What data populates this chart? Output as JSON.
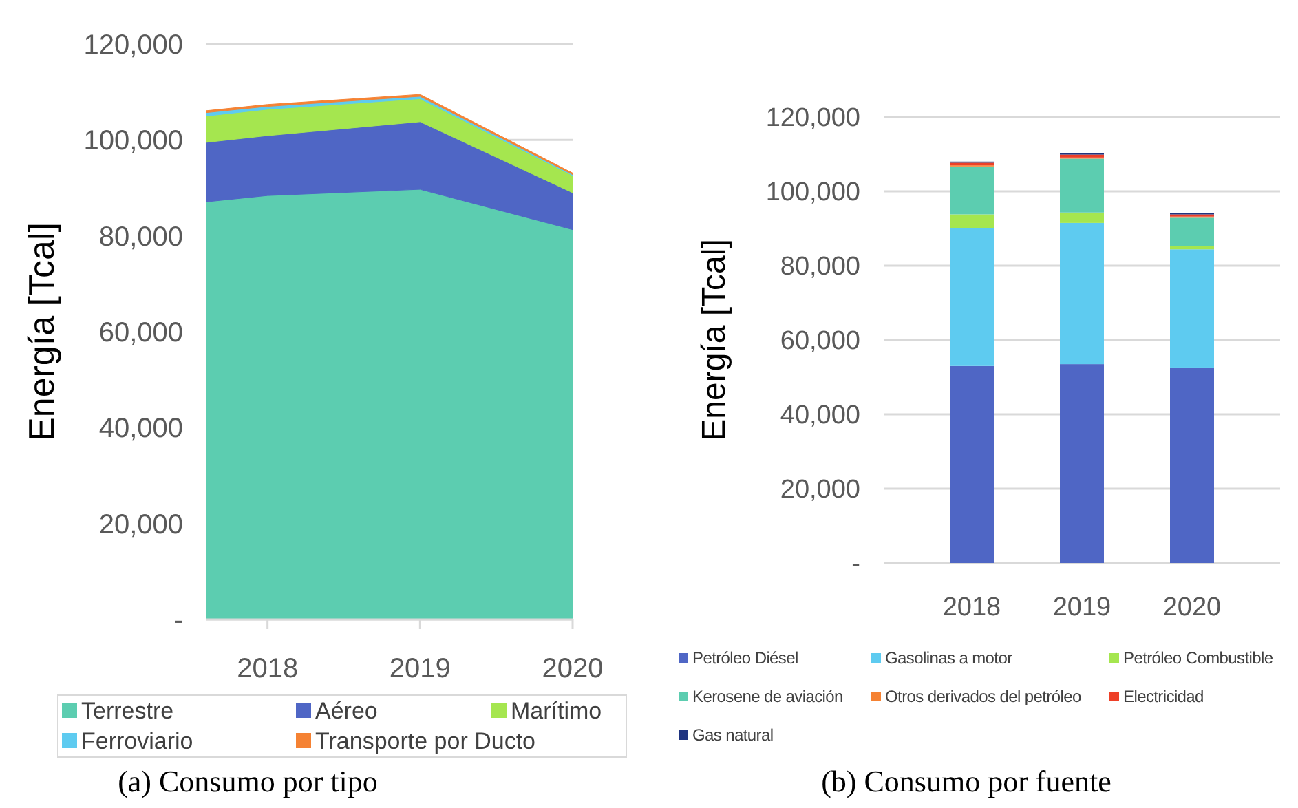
{
  "chart_data": [
    {
      "type": "area",
      "stacked": true,
      "x": [
        2017.6,
        2018,
        2019,
        2020
      ],
      "xlim": [
        2017.6,
        2020
      ],
      "xticks": [
        2018,
        2019,
        2020
      ],
      "ylabel": "Energía [Tcal]",
      "ylim": [
        0,
        120000
      ],
      "yticks": [
        {
          "value": 0,
          "label": "-"
        },
        {
          "value": 20000,
          "label": "20,000"
        },
        {
          "value": 40000,
          "label": "40,000"
        },
        {
          "value": 60000,
          "label": "60,000"
        },
        {
          "value": 80000,
          "label": "80,000"
        },
        {
          "value": 100000,
          "label": "100,000"
        },
        {
          "value": 120000,
          "label": "120,000"
        }
      ],
      "grid": "y",
      "legend": "bottom",
      "annotations": [
        "(a) Consumo por tipo"
      ],
      "series": [
        {
          "name": "Terrestre",
          "color": "#5ccdb0",
          "values": [
            87100,
            88400,
            89700,
            81300
          ]
        },
        {
          "name": "Aéreo",
          "color": "#4f66c5",
          "values": [
            12400,
            12500,
            14100,
            7700
          ]
        },
        {
          "name": "Marítimo",
          "color": "#a5e64f",
          "values": [
            5500,
            5500,
            4800,
            3600
          ]
        },
        {
          "name": "Ferroviario",
          "color": "#5ecbf0",
          "values": [
            700,
            600,
            500,
            200
          ]
        },
        {
          "name": "Transporte por Ducto",
          "color": "#f58233",
          "values": [
            400,
            400,
            400,
            300
          ]
        }
      ]
    },
    {
      "type": "bar",
      "stacked": true,
      "categories": [
        "2018",
        "2019",
        "2020"
      ],
      "ylabel": "Energía [Tcal]",
      "ylim": [
        0,
        120000
      ],
      "yticks": [
        {
          "value": 0,
          "label": "-"
        },
        {
          "value": 20000,
          "label": "20,000"
        },
        {
          "value": 40000,
          "label": "40,000"
        },
        {
          "value": 60000,
          "label": "60,000"
        },
        {
          "value": 80000,
          "label": "80,000"
        },
        {
          "value": 100000,
          "label": "100,000"
        },
        {
          "value": 120000,
          "label": "120,000"
        }
      ],
      "grid": "y",
      "legend": "bottom",
      "annotations": [
        "(b) Consumo por fuente"
      ],
      "series": [
        {
          "name": "Petróleo Diésel",
          "color": "#4f66c5",
          "values": [
            53000,
            53500,
            52600
          ]
        },
        {
          "name": "Gasolinas a motor",
          "color": "#5ecbf0",
          "values": [
            37100,
            38000,
            31800
          ]
        },
        {
          "name": "Petróleo Combustible",
          "color": "#a5e64f",
          "values": [
            3700,
            2800,
            800
          ]
        },
        {
          "name": "Kerosene de aviación",
          "color": "#5ccdb0",
          "values": [
            12900,
            14500,
            7700
          ]
        },
        {
          "name": "Otros derivados del petróleo",
          "color": "#f58233",
          "values": [
            300,
            300,
            300
          ]
        },
        {
          "name": "Electricidad",
          "color": "#ee4028",
          "values": [
            700,
            800,
            600
          ]
        },
        {
          "name": "Gas natural",
          "color": "#1f3480",
          "values": [
            300,
            300,
            300
          ]
        }
      ]
    }
  ]
}
